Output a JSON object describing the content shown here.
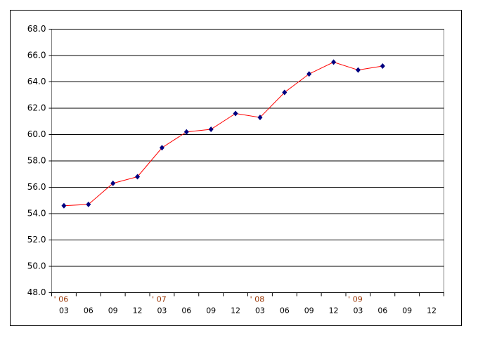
{
  "chart_data": {
    "type": "line",
    "categories": [
      "03",
      "06",
      "09",
      "12",
      "03",
      "06",
      "09",
      "12",
      "03",
      "06",
      "09",
      "12",
      "03",
      "06",
      "09",
      "12"
    ],
    "year_labels": [
      "' 06",
      null,
      null,
      null,
      "' 07",
      null,
      null,
      null,
      "' 08",
      null,
      null,
      null,
      "' 09",
      null,
      null,
      null
    ],
    "series": [
      {
        "color": "#ff0000",
        "marker_color": "#000080",
        "values": [
          54.6,
          54.7,
          56.3,
          56.8,
          59.0,
          60.2,
          60.4,
          61.6,
          61.3,
          63.2,
          64.6,
          65.5,
          64.9,
          65.2,
          null,
          null
        ]
      }
    ],
    "ylim": [
      48,
      68
    ],
    "yticks": [
      {
        "value": 48,
        "label": "48.0"
      },
      {
        "value": 50,
        "label": "50.0"
      },
      {
        "value": 52,
        "label": "52.0"
      },
      {
        "value": 54,
        "label": "54.0"
      },
      {
        "value": 56,
        "label": "56.0"
      },
      {
        "value": 58,
        "label": "58.0"
      },
      {
        "value": 60,
        "label": "60.0"
      },
      {
        "value": 62,
        "label": "62.0"
      },
      {
        "value": 64,
        "label": "64.0"
      },
      {
        "value": 66,
        "label": "66.0"
      },
      {
        "value": 68,
        "label": "68.0"
      }
    ],
    "grid": true
  }
}
